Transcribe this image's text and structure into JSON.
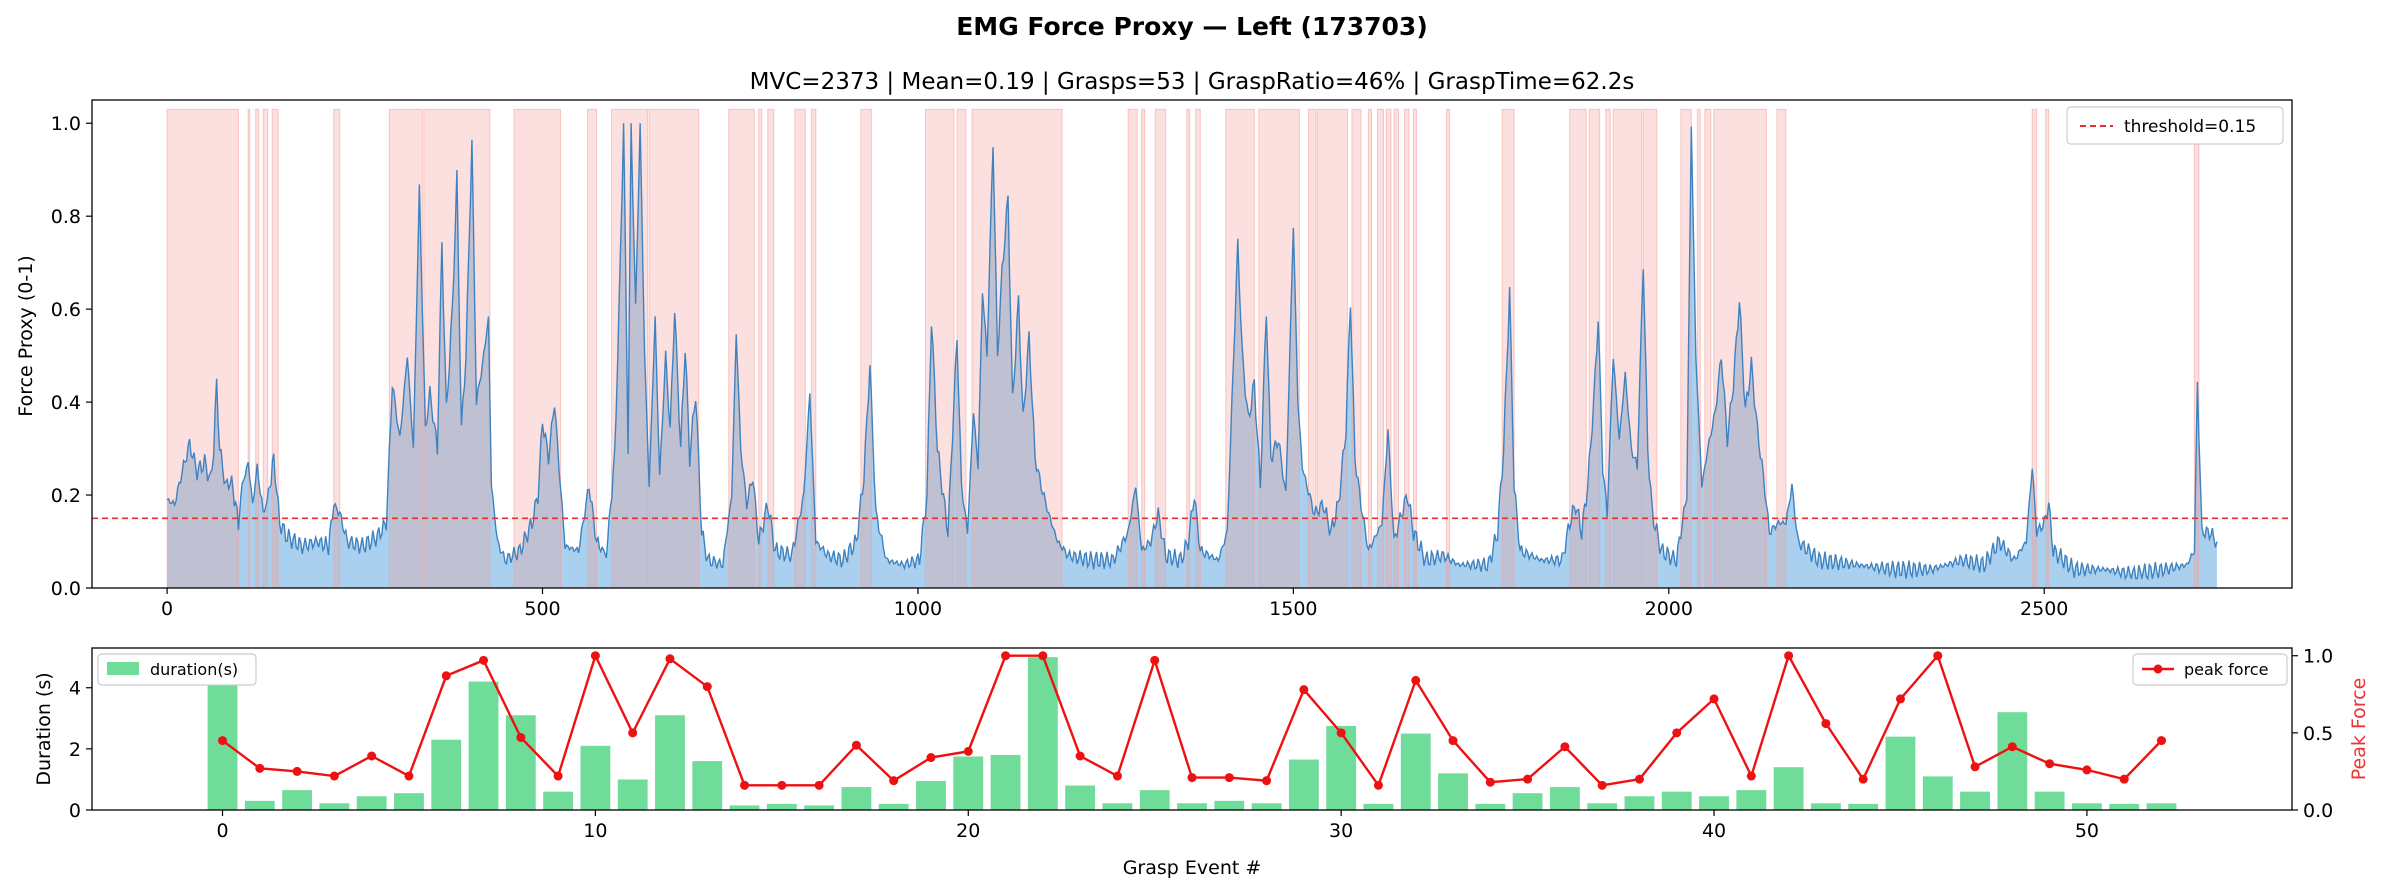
{
  "figure": {
    "suptitle": "EMG Force Proxy — Left (173703)"
  },
  "chart_data": [
    {
      "type": "area",
      "title": "MVC=2373 | Mean=0.19 | Grasps=53 | GraspRatio=46% | GraspTime=62.2s",
      "xlabel": "",
      "ylabel": "Force Proxy (0-1)",
      "xlim": [
        -100,
        2830
      ],
      "ylim": [
        0,
        1.05
      ],
      "xticks": [
        0,
        500,
        1000,
        1500,
        2000,
        2500
      ],
      "yticks": [
        0.0,
        0.2,
        0.4,
        0.6,
        0.8,
        1.0
      ],
      "threshold": 0.15,
      "threshold_label": "threshold=0.15",
      "legend_position": "upper right",
      "colors": {
        "line": "#3f82bf",
        "fill": "#a9d0ee",
        "shade": "#f4a09a",
        "threshold": "#e8312a"
      },
      "signal_keypoints": [
        [
          0,
          0.19
        ],
        [
          10,
          0.18
        ],
        [
          20,
          0.25
        ],
        [
          30,
          0.31
        ],
        [
          40,
          0.25
        ],
        [
          50,
          0.27
        ],
        [
          58,
          0.23
        ],
        [
          62,
          0.3
        ],
        [
          66,
          0.44
        ],
        [
          70,
          0.3
        ],
        [
          78,
          0.22
        ],
        [
          86,
          0.23
        ],
        [
          95,
          0.14
        ],
        [
          100,
          0.22
        ],
        [
          108,
          0.27
        ],
        [
          114,
          0.18
        ],
        [
          120,
          0.26
        ],
        [
          128,
          0.16
        ],
        [
          135,
          0.2
        ],
        [
          142,
          0.28
        ],
        [
          150,
          0.14
        ],
        [
          160,
          0.11
        ],
        [
          180,
          0.09
        ],
        [
          200,
          0.1
        ],
        [
          215,
          0.09
        ],
        [
          222,
          0.18
        ],
        [
          230,
          0.16
        ],
        [
          240,
          0.1
        ],
        [
          260,
          0.09
        ],
        [
          280,
          0.11
        ],
        [
          292,
          0.14
        ],
        [
          300,
          0.44
        ],
        [
          310,
          0.32
        ],
        [
          320,
          0.5
        ],
        [
          328,
          0.3
        ],
        [
          336,
          0.86
        ],
        [
          344,
          0.34
        ],
        [
          350,
          0.42
        ],
        [
          360,
          0.3
        ],
        [
          366,
          0.74
        ],
        [
          372,
          0.38
        ],
        [
          380,
          0.6
        ],
        [
          386,
          0.88
        ],
        [
          392,
          0.34
        ],
        [
          398,
          0.5
        ],
        [
          406,
          0.96
        ],
        [
          412,
          0.4
        ],
        [
          420,
          0.48
        ],
        [
          428,
          0.58
        ],
        [
          432,
          0.22
        ],
        [
          440,
          0.1
        ],
        [
          450,
          0.06
        ],
        [
          470,
          0.08
        ],
        [
          486,
          0.14
        ],
        [
          494,
          0.2
        ],
        [
          500,
          0.36
        ],
        [
          508,
          0.28
        ],
        [
          516,
          0.4
        ],
        [
          522,
          0.26
        ],
        [
          530,
          0.09
        ],
        [
          548,
          0.08
        ],
        [
          562,
          0.22
        ],
        [
          572,
          0.1
        ],
        [
          585,
          0.07
        ],
        [
          596,
          0.28
        ],
        [
          602,
          0.6
        ],
        [
          608,
          1.0
        ],
        [
          614,
          0.3
        ],
        [
          618,
          1.0
        ],
        [
          624,
          0.6
        ],
        [
          630,
          1.0
        ],
        [
          636,
          0.5
        ],
        [
          642,
          0.22
        ],
        [
          650,
          0.58
        ],
        [
          656,
          0.24
        ],
        [
          664,
          0.5
        ],
        [
          670,
          0.34
        ],
        [
          676,
          0.6
        ],
        [
          684,
          0.3
        ],
        [
          690,
          0.52
        ],
        [
          696,
          0.28
        ],
        [
          704,
          0.42
        ],
        [
          712,
          0.12
        ],
        [
          720,
          0.06
        ],
        [
          740,
          0.05
        ],
        [
          752,
          0.2
        ],
        [
          758,
          0.55
        ],
        [
          764,
          0.3
        ],
        [
          772,
          0.18
        ],
        [
          780,
          0.24
        ],
        [
          788,
          0.1
        ],
        [
          800,
          0.18
        ],
        [
          810,
          0.08
        ],
        [
          832,
          0.07
        ],
        [
          848,
          0.2
        ],
        [
          856,
          0.42
        ],
        [
          864,
          0.1
        ],
        [
          880,
          0.07
        ],
        [
          900,
          0.06
        ],
        [
          918,
          0.1
        ],
        [
          928,
          0.24
        ],
        [
          936,
          0.48
        ],
        [
          944,
          0.16
        ],
        [
          958,
          0.06
        ],
        [
          980,
          0.05
        ],
        [
          1002,
          0.06
        ],
        [
          1012,
          0.2
        ],
        [
          1018,
          0.58
        ],
        [
          1026,
          0.3
        ],
        [
          1032,
          0.22
        ],
        [
          1040,
          0.12
        ],
        [
          1052,
          0.54
        ],
        [
          1058,
          0.22
        ],
        [
          1066,
          0.12
        ],
        [
          1074,
          0.38
        ],
        [
          1080,
          0.26
        ],
        [
          1086,
          0.64
        ],
        [
          1092,
          0.5
        ],
        [
          1100,
          0.96
        ],
        [
          1106,
          0.5
        ],
        [
          1112,
          0.68
        ],
        [
          1120,
          0.84
        ],
        [
          1126,
          0.4
        ],
        [
          1134,
          0.62
        ],
        [
          1140,
          0.36
        ],
        [
          1148,
          0.54
        ],
        [
          1156,
          0.28
        ],
        [
          1164,
          0.22
        ],
        [
          1174,
          0.16
        ],
        [
          1186,
          0.1
        ],
        [
          1200,
          0.07
        ],
        [
          1230,
          0.06
        ],
        [
          1260,
          0.06
        ],
        [
          1280,
          0.12
        ],
        [
          1290,
          0.22
        ],
        [
          1298,
          0.08
        ],
        [
          1310,
          0.1
        ],
        [
          1320,
          0.16
        ],
        [
          1330,
          0.07
        ],
        [
          1350,
          0.06
        ],
        [
          1360,
          0.1
        ],
        [
          1368,
          0.2
        ],
        [
          1376,
          0.08
        ],
        [
          1400,
          0.06
        ],
        [
          1412,
          0.12
        ],
        [
          1420,
          0.48
        ],
        [
          1426,
          0.74
        ],
        [
          1432,
          0.5
        ],
        [
          1440,
          0.36
        ],
        [
          1448,
          0.44
        ],
        [
          1456,
          0.22
        ],
        [
          1464,
          0.6
        ],
        [
          1470,
          0.28
        ],
        [
          1480,
          0.32
        ],
        [
          1490,
          0.2
        ],
        [
          1500,
          0.78
        ],
        [
          1506,
          0.4
        ],
        [
          1512,
          0.26
        ],
        [
          1518,
          0.22
        ],
        [
          1528,
          0.16
        ],
        [
          1540,
          0.18
        ],
        [
          1550,
          0.12
        ],
        [
          1560,
          0.18
        ],
        [
          1570,
          0.34
        ],
        [
          1576,
          0.62
        ],
        [
          1582,
          0.28
        ],
        [
          1590,
          0.18
        ],
        [
          1600,
          0.08
        ],
        [
          1618,
          0.14
        ],
        [
          1626,
          0.34
        ],
        [
          1634,
          0.1
        ],
        [
          1644,
          0.16
        ],
        [
          1652,
          0.2
        ],
        [
          1660,
          0.12
        ],
        [
          1676,
          0.06
        ],
        [
          1700,
          0.07
        ],
        [
          1720,
          0.05
        ],
        [
          1760,
          0.05
        ],
        [
          1772,
          0.12
        ],
        [
          1780,
          0.3
        ],
        [
          1788,
          0.64
        ],
        [
          1794,
          0.22
        ],
        [
          1802,
          0.08
        ],
        [
          1830,
          0.06
        ],
        [
          1858,
          0.06
        ],
        [
          1868,
          0.14
        ],
        [
          1876,
          0.18
        ],
        [
          1884,
          0.12
        ],
        [
          1892,
          0.22
        ],
        [
          1900,
          0.4
        ],
        [
          1906,
          0.58
        ],
        [
          1912,
          0.26
        ],
        [
          1918,
          0.16
        ],
        [
          1926,
          0.5
        ],
        [
          1934,
          0.32
        ],
        [
          1942,
          0.46
        ],
        [
          1950,
          0.3
        ],
        [
          1958,
          0.26
        ],
        [
          1966,
          0.7
        ],
        [
          1972,
          0.3
        ],
        [
          1978,
          0.16
        ],
        [
          1990,
          0.08
        ],
        [
          2010,
          0.06
        ],
        [
          2024,
          0.2
        ],
        [
          2030,
          1.0
        ],
        [
          2036,
          0.5
        ],
        [
          2044,
          0.22
        ],
        [
          2052,
          0.3
        ],
        [
          2062,
          0.38
        ],
        [
          2070,
          0.5
        ],
        [
          2078,
          0.32
        ],
        [
          2086,
          0.44
        ],
        [
          2094,
          0.62
        ],
        [
          2102,
          0.38
        ],
        [
          2110,
          0.48
        ],
        [
          2118,
          0.34
        ],
        [
          2126,
          0.24
        ],
        [
          2134,
          0.12
        ],
        [
          2146,
          0.14
        ],
        [
          2156,
          0.14
        ],
        [
          2164,
          0.22
        ],
        [
          2172,
          0.1
        ],
        [
          2200,
          0.06
        ],
        [
          2250,
          0.05
        ],
        [
          2300,
          0.04
        ],
        [
          2350,
          0.04
        ],
        [
          2390,
          0.06
        ],
        [
          2420,
          0.05
        ],
        [
          2440,
          0.1
        ],
        [
          2460,
          0.06
        ],
        [
          2476,
          0.1
        ],
        [
          2484,
          0.26
        ],
        [
          2490,
          0.12
        ],
        [
          2500,
          0.14
        ],
        [
          2506,
          0.18
        ],
        [
          2512,
          0.08
        ],
        [
          2540,
          0.04
        ],
        [
          2580,
          0.04
        ],
        [
          2620,
          0.03
        ],
        [
          2660,
          0.04
        ],
        [
          2690,
          0.05
        ],
        [
          2700,
          0.08
        ],
        [
          2704,
          0.44
        ],
        [
          2710,
          0.12
        ],
        [
          2720,
          0.12
        ],
        [
          2730,
          0.1
        ]
      ],
      "shaded_regions": [
        [
          0,
          95
        ],
        [
          108,
          110
        ],
        [
          118,
          122
        ],
        [
          128,
          134
        ],
        [
          140,
          148
        ],
        [
          222,
          230
        ],
        [
          296,
          340
        ],
        [
          342,
          430
        ],
        [
          462,
          524
        ],
        [
          560,
          572
        ],
        [
          592,
          640
        ],
        [
          642,
          708
        ],
        [
          748,
          782
        ],
        [
          788,
          792
        ],
        [
          800,
          808
        ],
        [
          836,
          850
        ],
        [
          858,
          864
        ],
        [
          924,
          938
        ],
        [
          1010,
          1048
        ],
        [
          1052,
          1064
        ],
        [
          1072,
          1192
        ],
        [
          1280,
          1292
        ],
        [
          1298,
          1302
        ],
        [
          1316,
          1330
        ],
        [
          1358,
          1362
        ],
        [
          1370,
          1376
        ],
        [
          1410,
          1448
        ],
        [
          1454,
          1508
        ],
        [
          1520,
          1530
        ],
        [
          1532,
          1572
        ],
        [
          1578,
          1590
        ],
        [
          1600,
          1604
        ],
        [
          1612,
          1620
        ],
        [
          1624,
          1630
        ],
        [
          1634,
          1640
        ],
        [
          1648,
          1654
        ],
        [
          1660,
          1664
        ],
        [
          1704,
          1708
        ],
        [
          1778,
          1794
        ],
        [
          1868,
          1890
        ],
        [
          1894,
          1908
        ],
        [
          1916,
          1922
        ],
        [
          1926,
          1964
        ],
        [
          1966,
          1984
        ],
        [
          2016,
          2030
        ],
        [
          2038,
          2042
        ],
        [
          2048,
          2056
        ],
        [
          2060,
          2130
        ],
        [
          2144,
          2156
        ],
        [
          2484,
          2490
        ],
        [
          2502,
          2506
        ],
        [
          2700,
          2706
        ]
      ]
    },
    {
      "type": "bar",
      "title": "",
      "xlabel": "Grasp Event #",
      "ylabel": "Duration (s)",
      "ylabel_right": "Peak Force",
      "xlim": [
        -3.5,
        55.5
      ],
      "ylim": [
        0,
        5.3
      ],
      "ylim_right": [
        0,
        1.05
      ],
      "xticks": [
        0,
        10,
        20,
        30,
        40,
        50
      ],
      "yticks": [
        0,
        2,
        4
      ],
      "yticks_right": [
        0.0,
        0.5,
        1.0
      ],
      "colors": {
        "bar": "#6fdc9a",
        "line": "#ee1111",
        "right_axis_label": "#ee3333"
      },
      "series": [
        {
          "name": "duration(s)",
          "legend_position": "upper left",
          "values": [
            4.4,
            0.3,
            0.65,
            0.22,
            0.45,
            0.55,
            2.3,
            4.2,
            3.1,
            0.6,
            2.1,
            1.0,
            3.1,
            1.6,
            0.15,
            0.2,
            0.15,
            0.75,
            0.2,
            0.95,
            1.75,
            1.8,
            5.0,
            0.8,
            0.22,
            0.65,
            0.22,
            0.3,
            0.22,
            1.65,
            2.75,
            0.2,
            2.5,
            1.2,
            0.2,
            0.55,
            0.75,
            0.22,
            0.45,
            0.6,
            0.45,
            0.65,
            1.4,
            0.22,
            0.2,
            2.4,
            1.1,
            0.6,
            3.2,
            0.6,
            0.22,
            0.2,
            0.22
          ]
        },
        {
          "name": "peak force",
          "legend_position": "upper right",
          "values": [
            0.45,
            0.27,
            0.25,
            0.22,
            0.35,
            0.22,
            0.87,
            0.97,
            0.47,
            0.22,
            1.0,
            0.5,
            0.98,
            0.8,
            0.16,
            0.16,
            0.16,
            0.42,
            0.19,
            0.34,
            0.38,
            1.0,
            1.0,
            0.35,
            0.22,
            0.97,
            0.21,
            0.21,
            0.19,
            0.78,
            0.5,
            0.16,
            0.84,
            0.45,
            0.18,
            0.2,
            0.41,
            0.16,
            0.2,
            0.5,
            0.72,
            0.22,
            1.0,
            0.56,
            0.2,
            0.72,
            1.0,
            0.28,
            0.41,
            0.3,
            0.26,
            0.2,
            0.45
          ]
        }
      ]
    }
  ]
}
